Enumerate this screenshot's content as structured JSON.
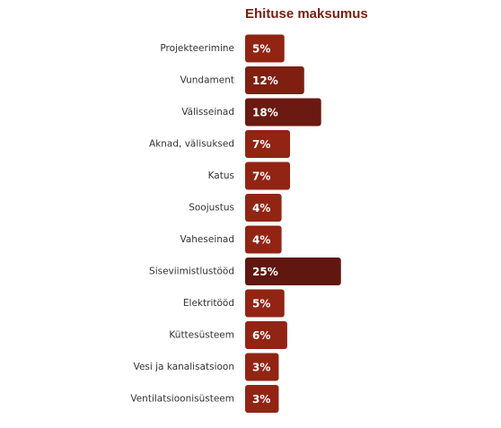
{
  "chart_data": {
    "type": "bar",
    "orientation": "horizontal",
    "title": "Ehituse maksumus",
    "categories": [
      "Projekteerimine",
      "Vundament",
      "Välisseinad",
      "Aknad, välisuksed",
      "Katus",
      "Soojustus",
      "Vaheseinad",
      "Siseviimistlustööd",
      "Elektritööd",
      "Küttesüsteem",
      "Vesi ja kanalisatsioon",
      "Ventilatsioonisüsteem"
    ],
    "values": [
      5,
      12,
      18,
      7,
      7,
      4,
      4,
      25,
      5,
      6,
      3,
      3
    ],
    "value_labels": [
      "5%",
      "12%",
      "18%",
      "7%",
      "7%",
      "4%",
      "4%",
      "25%",
      "5%",
      "6%",
      "3%",
      "3%"
    ],
    "colors": [
      "#922414",
      "#7f1f12",
      "#6a1a10",
      "#922414",
      "#922414",
      "#922414",
      "#922414",
      "#5f1710",
      "#922414",
      "#922414",
      "#922414",
      "#922414"
    ]
  }
}
